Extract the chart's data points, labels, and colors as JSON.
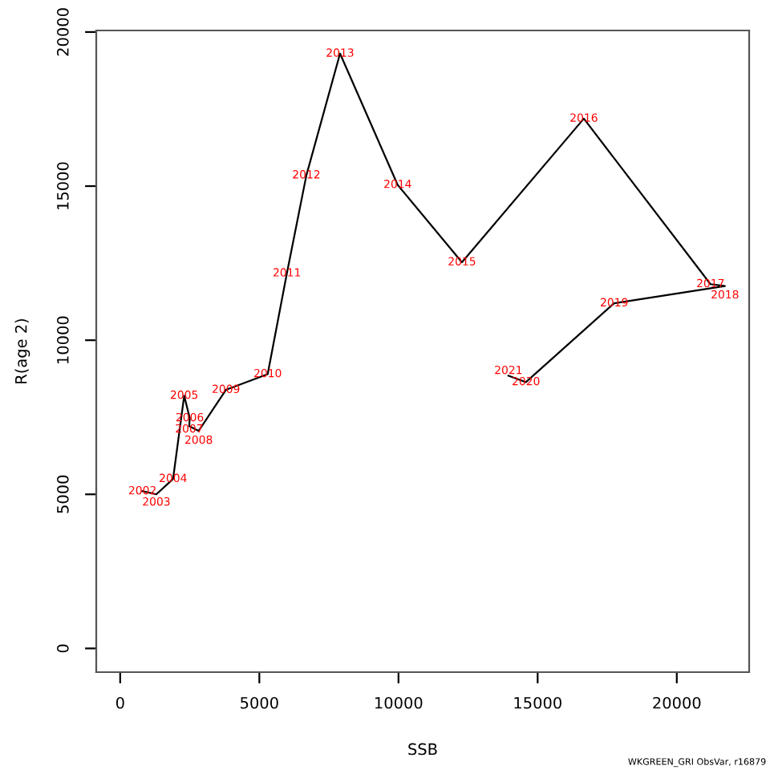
{
  "chart_data": {
    "type": "line",
    "xlabel": "SSB",
    "ylabel": "R(age 2)",
    "x": [
      800,
      1300,
      1900,
      2300,
      2500,
      2480,
      2820,
      3800,
      5300,
      5990,
      6690,
      7900,
      9970,
      12280,
      16660,
      21210,
      21730,
      17750,
      14580,
      13950
    ],
    "series": [
      {
        "color": "#000000",
        "values": [
          5100,
          5000,
          5500,
          8200,
          7470,
          7210,
          7060,
          8390,
          8900,
          12170,
          15350,
          19300,
          15040,
          12530,
          17190,
          11820,
          11760,
          11200,
          8640,
          8850
        ]
      }
    ],
    "xlim": [
      -860,
      22600
    ],
    "ylim": [
      -770,
      20050
    ],
    "xticks": [
      0,
      5000,
      10000,
      15000,
      20000
    ],
    "yticks": [
      0,
      5000,
      10000,
      15000,
      20000
    ],
    "grid": false,
    "marker": "none",
    "line_style": "solid",
    "annotations": [
      {
        "text": "2002",
        "x": 800,
        "y": 5100
      },
      {
        "text": "2003",
        "x": 1300,
        "y": 5000
      },
      {
        "text": "2004",
        "x": 1900,
        "y": 5500
      },
      {
        "text": "2005",
        "x": 2300,
        "y": 8200
      },
      {
        "text": "2006",
        "x": 2500,
        "y": 7470
      },
      {
        "text": "2007",
        "x": 2480,
        "y": 7210
      },
      {
        "text": "2008",
        "x": 2820,
        "y": 7060
      },
      {
        "text": "2009",
        "x": 3800,
        "y": 8390
      },
      {
        "text": "2010",
        "x": 5300,
        "y": 8900
      },
      {
        "text": "2011",
        "x": 5990,
        "y": 12170
      },
      {
        "text": "2012",
        "x": 6690,
        "y": 15350
      },
      {
        "text": "2013",
        "x": 7900,
        "y": 19300
      },
      {
        "text": "2014",
        "x": 9970,
        "y": 15040
      },
      {
        "text": "2015",
        "x": 12280,
        "y": 12530
      },
      {
        "text": "2016",
        "x": 16660,
        "y": 17190
      },
      {
        "text": "2017",
        "x": 21210,
        "y": 11820
      },
      {
        "text": "2018",
        "x": 21730,
        "y": 11760
      },
      {
        "text": "2019",
        "x": 17750,
        "y": 11200
      },
      {
        "text": "2020",
        "x": 14580,
        "y": 8640
      },
      {
        "text": "2021",
        "x": 13950,
        "y": 8850
      },
      "WKGREEN_GRI ObsVar, r16879"
    ]
  }
}
